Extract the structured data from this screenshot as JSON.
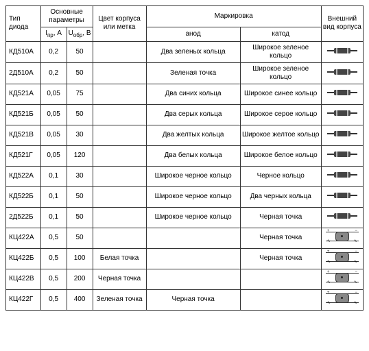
{
  "headers": {
    "type": "Тип диода",
    "params_group": "Основные параметры",
    "i_pr": "Iпр, A",
    "u_obr": "Uобр, В",
    "color": "Цвет корпуса или метка",
    "marking_group": "Маркировка",
    "anode": "анод",
    "cathode": "катод",
    "view": "Внешний вид корпуса"
  },
  "rows": [
    {
      "type": "КД510А",
      "i": "0,2",
      "u": "50",
      "color": "",
      "anode": "Два зеленых кольца",
      "cathode": "Широкое зеленое кольцо",
      "shape": "axial"
    },
    {
      "type": "2Д510А",
      "i": "0,2",
      "u": "50",
      "color": "",
      "anode": "Зеленая точка",
      "cathode": "Широкое зеленое кольцо",
      "shape": "axial"
    },
    {
      "type": "КД521А",
      "i": "0,05",
      "u": "75",
      "color": "",
      "anode": "Два синих кольца",
      "cathode": "Широкое синее кольцо",
      "shape": "axial"
    },
    {
      "type": "КД521Б",
      "i": "0,05",
      "u": "50",
      "color": "",
      "anode": "Два серых кольца",
      "cathode": "Широкое серое кольцо",
      "shape": "axial"
    },
    {
      "type": "КД521В",
      "i": "0,05",
      "u": "30",
      "color": "",
      "anode": "Два желтых кольца",
      "cathode": "Широкое желтое кольцо",
      "shape": "axial"
    },
    {
      "type": "КД521Г",
      "i": "0,05",
      "u": "120",
      "color": "",
      "anode": "Два белых кольца",
      "cathode": "Широкое белое кольцо",
      "shape": "axial"
    },
    {
      "type": "КД522А",
      "i": "0,1",
      "u": "30",
      "color": "",
      "anode": "Широкое черное кольцо",
      "cathode": "Черное кольцо",
      "shape": "axial"
    },
    {
      "type": "КД522Б",
      "i": "0,1",
      "u": "50",
      "color": "",
      "anode": "Широкое черное кольцо",
      "cathode": "Два черных кольца",
      "shape": "axial"
    },
    {
      "type": "2Д522Б",
      "i": "0,1",
      "u": "50",
      "color": "",
      "anode": "Широкое черное кольцо",
      "cathode": "Черная точка",
      "shape": "axial"
    },
    {
      "type": "КЦ422А",
      "i": "0,5",
      "u": "50",
      "color": "",
      "anode": "",
      "cathode": "Черная точка",
      "shape": "bridge"
    },
    {
      "type": "КЦ422Б",
      "i": "0,5",
      "u": "100",
      "color": "Белая точка",
      "anode": "",
      "cathode": "Черная точка",
      "shape": "bridge"
    },
    {
      "type": "КЦ422В",
      "i": "0,5",
      "u": "200",
      "color": "Черная точка",
      "anode": "",
      "cathode": "",
      "shape": "bridge"
    },
    {
      "type": "КЦ422Г",
      "i": "0,5",
      "u": "400",
      "color": "Зеленая точка",
      "anode": "Черная точка",
      "cathode": "",
      "shape": "bridge"
    }
  ]
}
